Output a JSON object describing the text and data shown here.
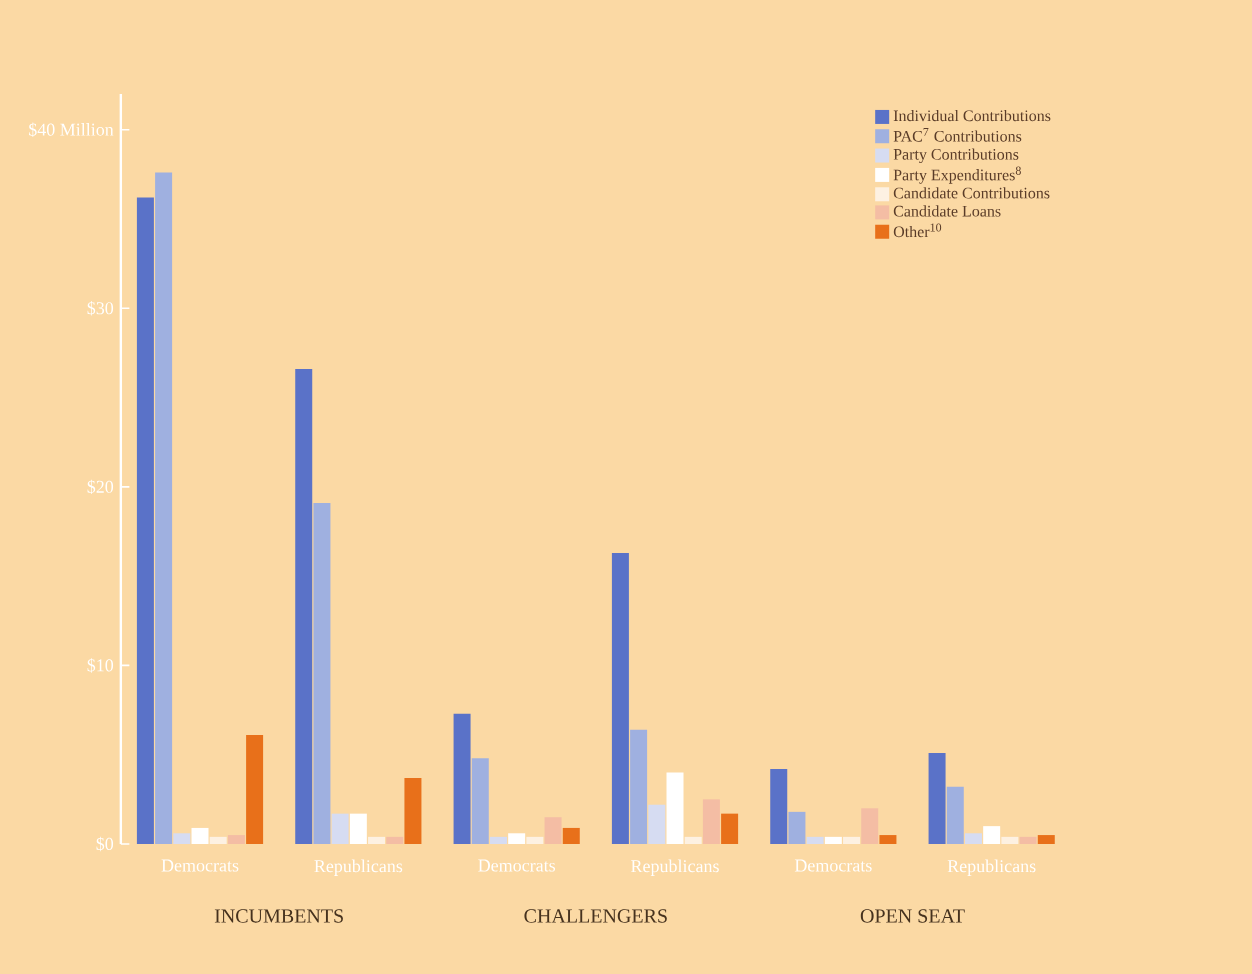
{
  "chart_data": {
    "type": "bar",
    "categories": [
      "Democrats",
      "Republicans",
      "Democrats",
      "Republicans",
      "Democrats",
      "Republicans"
    ],
    "series": [
      {
        "name": "Individual Contributions",
        "color": "#5a72c8",
        "values": [
          36.2,
          26.6,
          7.3,
          16.3,
          4.2,
          5.1
        ]
      },
      {
        "name": "PAC$^{7}$ Contributions",
        "color": "#9fb0e0",
        "values": [
          37.6,
          19.1,
          4.8,
          6.4,
          1.8,
          3.2
        ]
      },
      {
        "name": "Party Contributions",
        "color": "#d6dcf2",
        "values": [
          0.6,
          1.7,
          0.4,
          2.2,
          0.4,
          0.6
        ]
      },
      {
        "name": "Party Expenditures$^{8}$",
        "color": "#ffffff",
        "values": [
          0.9,
          1.7,
          0.6,
          4.0,
          0.4,
          1.0
        ]
      },
      {
        "name": "Candidate Contributions",
        "color": "#fdf1e2",
        "values": [
          0.4,
          0.4,
          0.4,
          0.4,
          0.4,
          0.4
        ]
      },
      {
        "name": "Candidate Loans",
        "color": "#f4bda4",
        "values": [
          0.5,
          0.4,
          1.5,
          2.5,
          2.0,
          0.4
        ]
      },
      {
        "name": "Other$^{10}$",
        "color": "#e8701a",
        "values": [
          6.1,
          3.7,
          0.9,
          1.7,
          0.5,
          0.5
        ]
      }
    ],
    "ylim": [
      0,
      42
    ],
    "yticks": [
      {
        "value": 0,
        "label": "$0"
      },
      {
        "value": 10,
        "label": "$10"
      },
      {
        "value": 20,
        "label": "$20"
      },
      {
        "value": 30,
        "label": "$30"
      },
      {
        "value": 40,
        "label": "$40 Million"
      }
    ],
    "annotations": [
      "INCUMBENTS",
      "CHALLENGERS",
      "OPEN SEAT"
    ],
    "legend": "top right"
  }
}
